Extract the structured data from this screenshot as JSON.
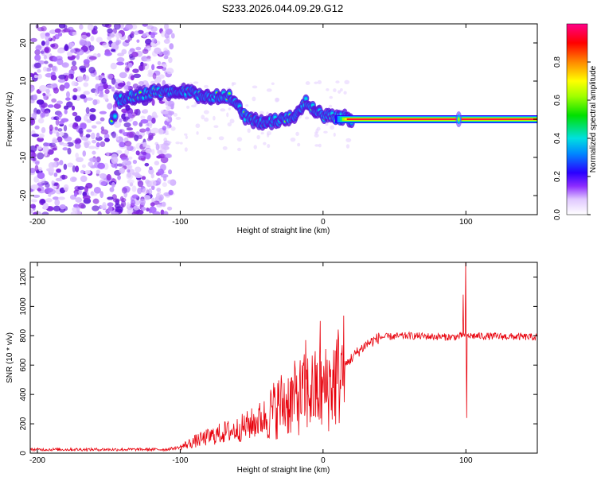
{
  "title": "S233.2026.044.09.29.G12",
  "chart_data": [
    {
      "type": "heatmap",
      "xlabel": "Height of straight line (km)",
      "ylabel": "Frequency (Hz)",
      "xlim": [
        -205,
        150
      ],
      "ylim": [
        -25,
        25
      ],
      "x_ticks": [
        -200,
        -100,
        0,
        100
      ],
      "y_ticks": [
        -20,
        -10,
        0,
        10,
        20
      ],
      "colorbar": {
        "label": "Normalized spectral amplitude",
        "range": [
          0,
          1
        ],
        "ticks": [
          "0.0",
          "0.2",
          "0.4",
          "0.6",
          "0.8"
        ]
      },
      "ridge": {
        "description_points": [
          [
            -145,
            5
          ],
          [
            -120,
            7
          ],
          [
            -100,
            7.5
          ],
          [
            -80,
            6
          ],
          [
            -65,
            6
          ],
          [
            -55,
            1
          ],
          [
            -45,
            -1
          ],
          [
            -38,
            -1
          ],
          [
            -30,
            0
          ],
          [
            -20,
            1
          ],
          [
            -12,
            5
          ],
          [
            -8,
            3
          ],
          [
            0,
            1
          ],
          [
            10,
            0.5
          ],
          [
            20,
            0
          ],
          [
            150,
            0
          ]
        ],
        "spike_at_km": 95
      }
    },
    {
      "type": "line",
      "xlabel": "Height of straight line (km)",
      "ylabel": "SNR (10 * v/v)",
      "xlim": [
        -205,
        150
      ],
      "ylim": [
        0,
        1300
      ],
      "x_ticks": [
        -200,
        -100,
        0,
        100
      ],
      "y_ticks": [
        0,
        200,
        400,
        600,
        800,
        1000,
        1200
      ],
      "series_color": "#e8000b",
      "trend": [
        [
          -205,
          25
        ],
        [
          -110,
          25
        ],
        [
          -100,
          40
        ],
        [
          -90,
          80
        ],
        [
          -80,
          110
        ],
        [
          -70,
          140
        ],
        [
          -60,
          160
        ],
        [
          -50,
          200
        ],
        [
          -40,
          250
        ],
        [
          -30,
          330
        ],
        [
          -20,
          370
        ],
        [
          -10,
          420
        ],
        [
          0,
          420
        ],
        [
          10,
          520
        ],
        [
          20,
          650
        ],
        [
          30,
          740
        ],
        [
          40,
          790
        ],
        [
          60,
          800
        ],
        [
          90,
          790
        ],
        [
          100,
          800
        ],
        [
          150,
          790
        ]
      ],
      "spikes": [
        {
          "x": -2,
          "y": 900
        },
        {
          "x": -12,
          "y": 770
        },
        {
          "x": 98,
          "y": 1080
        },
        {
          "x": 100,
          "y": 1300
        },
        {
          "x": 100.5,
          "y": 240
        }
      ]
    }
  ]
}
